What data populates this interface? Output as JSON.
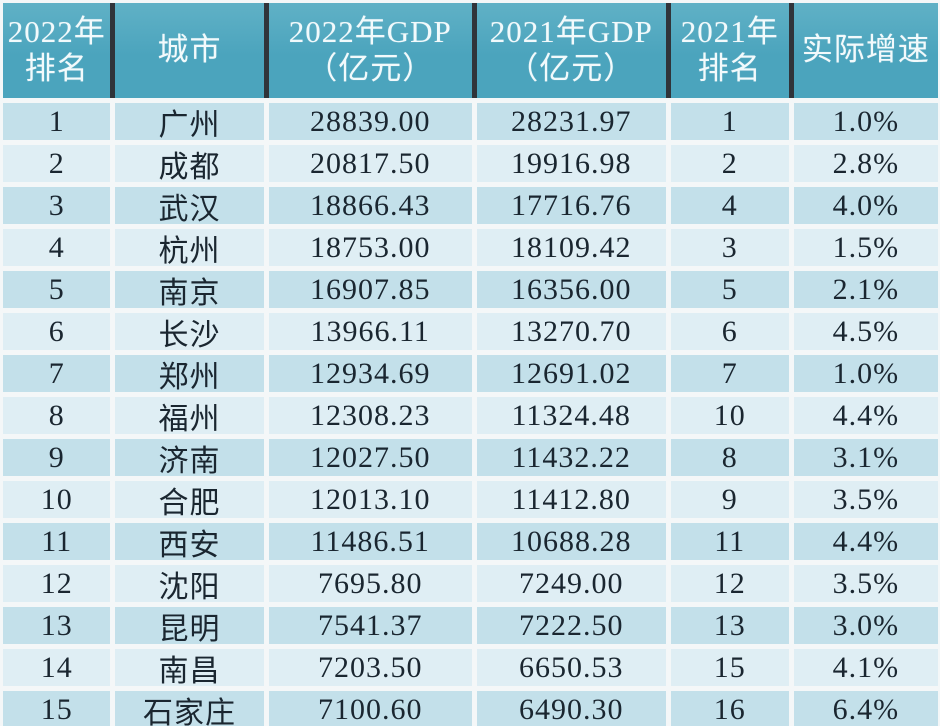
{
  "colors": {
    "header_bg": "#4ba4bd",
    "header_bg_light": "#60b1c6",
    "header_text": "#f2fafc",
    "header_divider": "#30343a",
    "row_odd_bg": "#c3e0ea",
    "row_even_bg": "#dfeef4",
    "gap": "#f4f7f8",
    "body_text": "#1a2630"
  },
  "table": {
    "header": {
      "cells": [
        "2022年\n排名",
        "城市",
        "2022年GDP\n（亿元）",
        "2021年GDP\n（亿元）",
        "2021年\n排名",
        "实际增速"
      ]
    }
  },
  "chart_data": {
    "type": "table",
    "columns": [
      "2022年排名",
      "城市",
      "2022年GDP（亿元）",
      "2021年GDP（亿元）",
      "2021年排名",
      "实际增速"
    ],
    "rows": [
      [
        "1",
        "广州",
        "28839.00",
        "28231.97",
        "1",
        "1.0%"
      ],
      [
        "2",
        "成都",
        "20817.50",
        "19916.98",
        "2",
        "2.8%"
      ],
      [
        "3",
        "武汉",
        "18866.43",
        "17716.76",
        "4",
        "4.0%"
      ],
      [
        "4",
        "杭州",
        "18753.00",
        "18109.42",
        "3",
        "1.5%"
      ],
      [
        "5",
        "南京",
        "16907.85",
        "16356.00",
        "5",
        "2.1%"
      ],
      [
        "6",
        "长沙",
        "13966.11",
        "13270.70",
        "6",
        "4.5%"
      ],
      [
        "7",
        "郑州",
        "12934.69",
        "12691.02",
        "7",
        "1.0%"
      ],
      [
        "8",
        "福州",
        "12308.23",
        "11324.48",
        "10",
        "4.4%"
      ],
      [
        "9",
        "济南",
        "12027.50",
        "11432.22",
        "8",
        "3.1%"
      ],
      [
        "10",
        "合肥",
        "12013.10",
        "11412.80",
        "9",
        "3.5%"
      ],
      [
        "11",
        "西安",
        "11486.51",
        "10688.28",
        "11",
        "4.4%"
      ],
      [
        "12",
        "沈阳",
        "7695.80",
        "7249.00",
        "12",
        "3.5%"
      ],
      [
        "13",
        "昆明",
        "7541.37",
        "7222.50",
        "13",
        "3.0%"
      ],
      [
        "14",
        "南昌",
        "7203.50",
        "6650.53",
        "15",
        "4.1%"
      ],
      [
        "15",
        "石家庄",
        "7100.60",
        "6490.30",
        "16",
        "6.4%"
      ]
    ]
  }
}
